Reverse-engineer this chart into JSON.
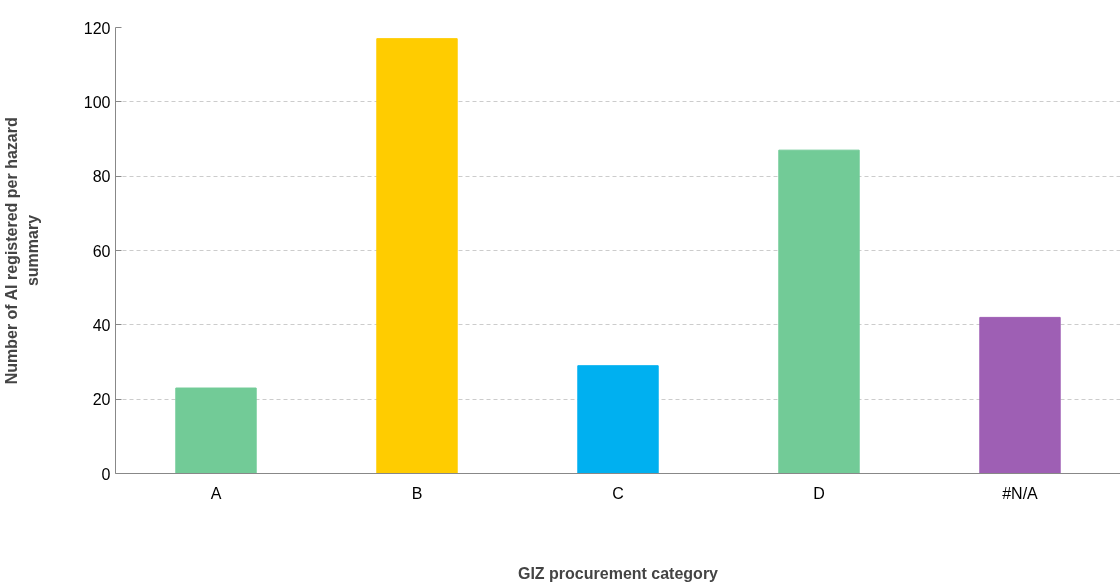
{
  "chart_data": {
    "type": "bar",
    "xlabel": "GIZ procurement category",
    "ylabel": "Number of AI registered per hazard\nsummary",
    "categories": [
      "A",
      "B",
      "C",
      "D",
      "#N/A"
    ],
    "values": [
      23,
      117,
      29,
      87,
      42
    ],
    "colors": [
      "#72cb97",
      "#ffcc00",
      "#00b0f0",
      "#72cb97",
      "#9e5fb4"
    ],
    "ylim": [
      0,
      120
    ],
    "yticks": [
      0,
      20,
      40,
      60,
      80,
      100,
      120
    ],
    "grid": "y"
  }
}
